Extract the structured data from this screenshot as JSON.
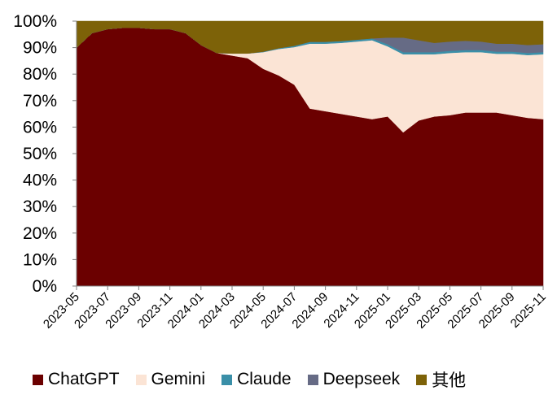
{
  "chart_data": {
    "type": "area",
    "stacked": true,
    "title": "",
    "xlabel": "",
    "ylabel": "",
    "ylim": [
      0,
      100
    ],
    "yticks": [
      "0%",
      "10%",
      "20%",
      "30%",
      "40%",
      "50%",
      "60%",
      "70%",
      "80%",
      "90%",
      "100%"
    ],
    "x": [
      "2023-05",
      "2023-06",
      "2023-07",
      "2023-08",
      "2023-09",
      "2023-10",
      "2023-11",
      "2023-12",
      "2024-01",
      "2024-02",
      "2024-03",
      "2024-04",
      "2024-05",
      "2024-06",
      "2024-07",
      "2024-08",
      "2024-09",
      "2024-10",
      "2024-11",
      "2024-12",
      "2025-01",
      "2025-02",
      "2025-03",
      "2025-04",
      "2025-05",
      "2025-06",
      "2025-07",
      "2025-08",
      "2025-09",
      "2025-10",
      "2025-11"
    ],
    "xtick_labels": [
      "2023-05",
      "2023-07",
      "2023-09",
      "2023-11",
      "2024-01",
      "2024-03",
      "2024-05",
      "2024-07",
      "2024-09",
      "2024-11",
      "2025-01",
      "2025-03",
      "2025-05",
      "2025-07",
      "2025-09",
      "2025-11"
    ],
    "series": [
      {
        "name": "ChatGPT",
        "color": "#6b0000",
        "values": [
          90,
          95.5,
          97,
          97.5,
          97.5,
          97,
          97,
          95.5,
          91,
          88,
          87,
          86,
          82,
          79.5,
          76,
          67,
          66,
          65,
          64,
          63,
          64,
          58,
          62.5,
          64,
          64.5,
          65.5,
          65.5,
          65.5,
          64.5,
          63.5,
          63
        ]
      },
      {
        "name": "Gemini",
        "color": "#fbe4d5",
        "values": [
          0,
          0,
          0,
          0,
          0,
          0,
          0,
          0,
          0,
          0,
          0.8,
          1.8,
          6.3,
          10,
          14.2,
          24.5,
          25.5,
          26.8,
          28.3,
          29.8,
          26.5,
          29.5,
          25,
          23.5,
          23.5,
          22.8,
          22.8,
          22.2,
          23.2,
          23.7,
          24.5
        ]
      },
      {
        "name": "Claude",
        "color": "#3a8fa8",
        "values": [
          0,
          0,
          0,
          0,
          0,
          0,
          0,
          0,
          0,
          0,
          0,
          0,
          0.2,
          0.3,
          0.5,
          0.7,
          0.7,
          0.7,
          0.7,
          0.7,
          0.8,
          0.8,
          0.8,
          0.8,
          0.8,
          0.8,
          0.8,
          0.8,
          0.8,
          0.8,
          0.8
        ]
      },
      {
        "name": "Deepseek",
        "color": "#666b85",
        "values": [
          0,
          0,
          0,
          0,
          0,
          0,
          0,
          0,
          0,
          0,
          0,
          0,
          0,
          0,
          0,
          0,
          0,
          0,
          0,
          0,
          2.5,
          5.5,
          4.5,
          3.5,
          3.5,
          3.5,
          3.2,
          3,
          3,
          3,
          3
        ]
      },
      {
        "name": "其他",
        "color": "#7d6208",
        "values": [
          10,
          4.5,
          3,
          2.5,
          2.5,
          3,
          3,
          4.5,
          9,
          12,
          12.2,
          12.2,
          11.5,
          10.2,
          9.3,
          7.8,
          7.8,
          7.5,
          7,
          6.5,
          6.2,
          6.2,
          7.2,
          8.2,
          7.7,
          7.4,
          7.7,
          8.5,
          8.5,
          9,
          8.7
        ]
      }
    ],
    "legend_position": "bottom",
    "grid": false
  }
}
